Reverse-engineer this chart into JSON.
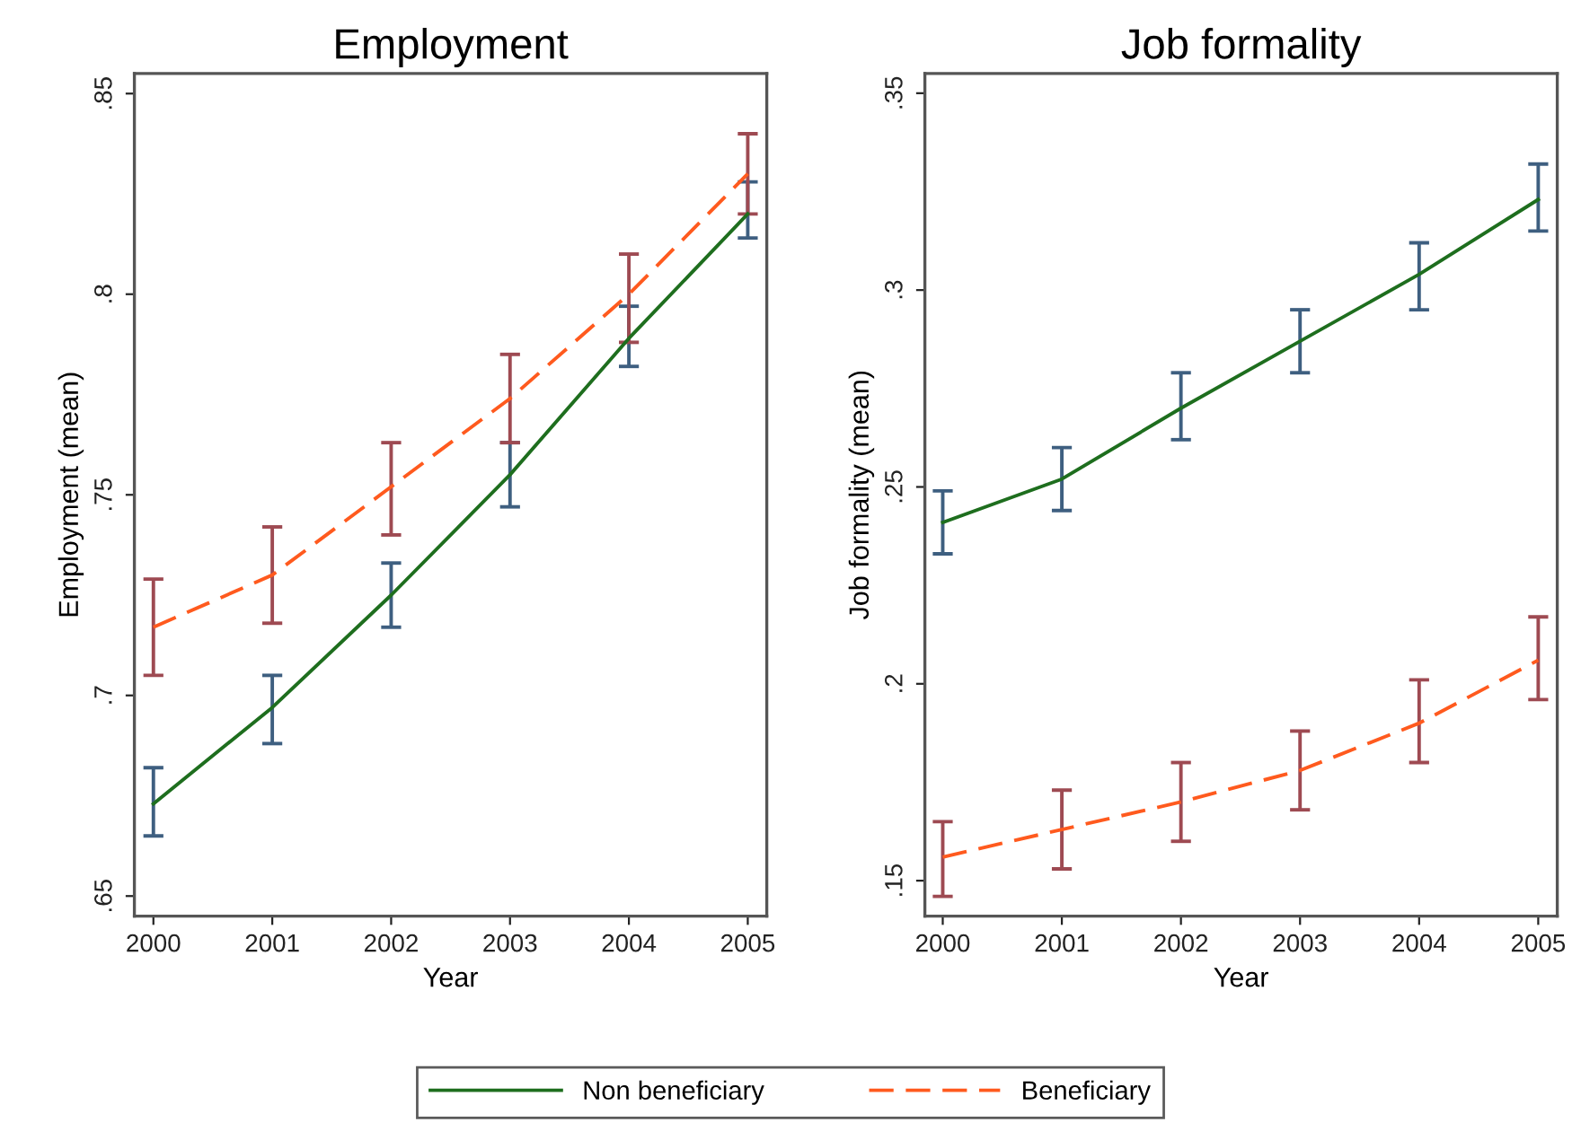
{
  "chart_data": [
    {
      "type": "line",
      "title": "Employment",
      "xlabel": "Year",
      "ylabel": "Employment (mean)",
      "x": [
        2000,
        2001,
        2002,
        2003,
        2004,
        2005
      ],
      "series": [
        {
          "name": "Non beneficiary",
          "color": "#1e6e1e",
          "line_style": "solid",
          "values": [
            0.673,
            0.697,
            0.725,
            0.755,
            0.789,
            0.82
          ],
          "errors": [
            [
              0.665,
              0.682
            ],
            [
              0.688,
              0.705
            ],
            [
              0.717,
              0.733
            ],
            [
              0.747,
              0.763
            ],
            [
              0.782,
              0.797
            ],
            [
              0.814,
              0.828
            ]
          ]
        },
        {
          "name": "Beneficiary",
          "color": "#ff5a1e",
          "line_style": "dashed",
          "values": [
            0.717,
            0.73,
            0.752,
            0.774,
            0.8,
            0.83
          ],
          "errors": [
            [
              0.705,
              0.729
            ],
            [
              0.718,
              0.742
            ],
            [
              0.74,
              0.763
            ],
            [
              0.763,
              0.785
            ],
            [
              0.788,
              0.81
            ],
            [
              0.82,
              0.84
            ]
          ]
        }
      ],
      "xlim": [
        1999.84,
        2005.16
      ],
      "ylim": [
        0.645,
        0.855
      ],
      "xticks": [
        2000,
        2001,
        2002,
        2003,
        2004,
        2005
      ],
      "yticks": [
        {
          "value": 0.65,
          "label": ".65"
        },
        {
          "value": 0.7,
          "label": ".7"
        },
        {
          "value": 0.75,
          "label": ".75"
        },
        {
          "value": 0.8,
          "label": ".8"
        },
        {
          "value": 0.85,
          "label": ".85"
        }
      ],
      "grid": false,
      "legend": "bottom",
      "marker": "none"
    },
    {
      "type": "line",
      "title": "Job formality",
      "xlabel": "Year",
      "ylabel": "Job formality (mean)",
      "x": [
        2000,
        2001,
        2002,
        2003,
        2004,
        2005
      ],
      "series": [
        {
          "color": "#1e6e1e",
          "line_style": "solid",
          "values": [
            0.241,
            0.252,
            0.27,
            0.287,
            0.304,
            0.323
          ],
          "errors": [
            [
              0.233,
              0.249
            ],
            [
              0.244,
              0.26
            ],
            [
              0.262,
              0.279
            ],
            [
              0.279,
              0.295
            ],
            [
              0.295,
              0.312
            ],
            [
              0.315,
              0.332
            ]
          ]
        },
        {
          "color": "#ff5a1e",
          "line_style": "dashed",
          "values": [
            0.156,
            0.163,
            0.17,
            0.178,
            0.19,
            0.206
          ],
          "errors": [
            [
              0.146,
              0.165
            ],
            [
              0.153,
              0.173
            ],
            [
              0.16,
              0.18
            ],
            [
              0.168,
              0.188
            ],
            [
              0.18,
              0.201
            ],
            [
              0.196,
              0.217
            ]
          ]
        }
      ],
      "xlim": [
        1999.85,
        2005.16
      ],
      "ylim": [
        0.141,
        0.355
      ],
      "xticks": [
        2000,
        2001,
        2002,
        2003,
        2004,
        2005
      ],
      "yticks": [
        {
          "value": 0.15,
          "label": ".15"
        },
        {
          "value": 0.2,
          "label": ".2"
        },
        {
          "value": 0.25,
          "label": ".25"
        },
        {
          "value": 0.3,
          "label": ".3"
        },
        {
          "value": 0.35,
          "label": ".35"
        }
      ],
      "grid": false,
      "legend": "bottom",
      "marker": "none"
    }
  ]
}
